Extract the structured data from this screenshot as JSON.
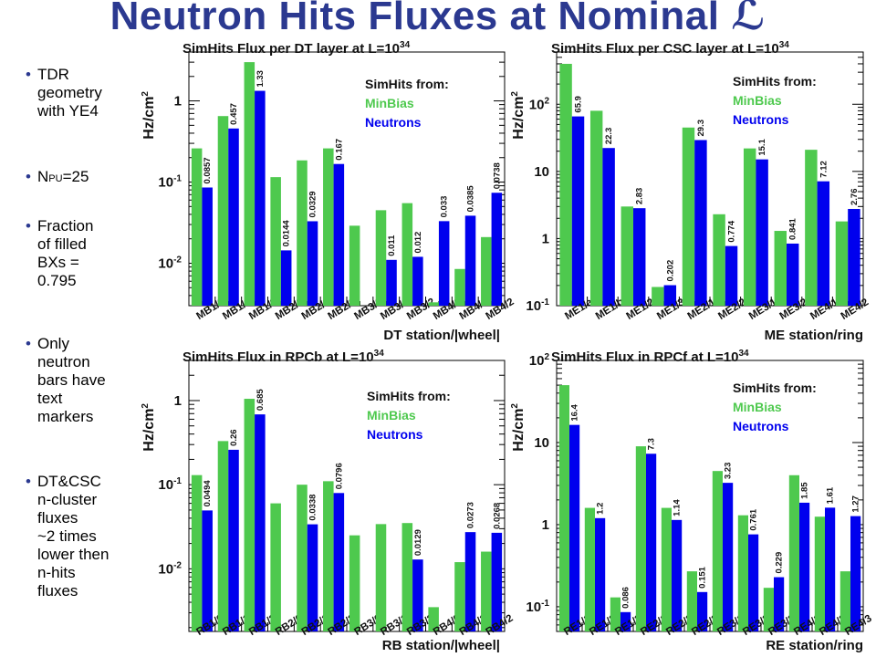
{
  "slide": {
    "title": "Neutron Hits Fluxes at Nominal ℒ",
    "bullets": [
      {
        "text": "TDR\ngeometry\nwith YE4"
      },
      {
        "text": "N",
        "sub": "PU",
        "after": "=25"
      },
      {
        "text": "Fraction\nof filled\nBXs =\n0.795"
      },
      {
        "text": "Only\nneutron\nbars have\ntext\nmarkers"
      },
      {
        "text": "DT&CSC\nn-cluster\nfluxes\n~2 times\nlower then\nn-hits\nfluxes"
      }
    ]
  },
  "colors": {
    "minbias": "#4ec94e",
    "neutrons": "#0000ee",
    "title": "#2b3990"
  },
  "chart_data": [
    {
      "type": "bar",
      "scale": "log",
      "title": "SimHits Flux per DT layer at L=10",
      "title_sup": "34",
      "ylabel": "Hz/cm",
      "ylabel_sup": "2",
      "xlabel": "DT station/|wheel|",
      "ylim": [
        0.003,
        4
      ],
      "yticks": [
        {
          "v": 1,
          "t": "1"
        },
        {
          "v": 0.1,
          "t": "10",
          "sup": "-1"
        },
        {
          "v": 0.01,
          "t": "10",
          "sup": "-2"
        }
      ],
      "legend": {
        "title": "SimHits from:",
        "items": [
          "MinBias",
          "Neutrons"
        ],
        "position": "top-right"
      },
      "categories": [
        "MB1/0",
        "MB1/1",
        "MB1/2",
        "MB2/0",
        "MB2/1",
        "MB2/2",
        "MB3/0",
        "MB3/1",
        "MB3/2",
        "MB4/0",
        "MB4/1",
        "MB4/2"
      ],
      "series": [
        {
          "name": "MinBias",
          "values": [
            0.26,
            0.65,
            3.0,
            0.115,
            0.185,
            0.26,
            0.029,
            0.045,
            0.055,
            0.0033,
            0.0085,
            0.021
          ]
        },
        {
          "name": "Neutrons",
          "values": [
            0.0857,
            0.457,
            1.33,
            0.0144,
            0.0329,
            0.167,
            null,
            0.011,
            0.012,
            0.033,
            0.0385,
            0.0738
          ]
        }
      ],
      "labels": [
        "0.0857",
        "0.457",
        "1.33",
        "0.0144",
        "0.0329",
        "0.167",
        "",
        "0.011",
        "0.012",
        "0.033",
        "0.0385",
        "0.0738"
      ]
    },
    {
      "type": "bar",
      "scale": "log",
      "title": "SimHits Flux per CSC layer at L=10",
      "title_sup": "34",
      "ylabel": "Hz/cm",
      "ylabel_sup": "2",
      "xlabel": "ME station/ring",
      "ylim": [
        0.1,
        600
      ],
      "yticks": [
        {
          "v": 100,
          "t": "10",
          "sup": "2"
        },
        {
          "v": 10,
          "t": "10"
        },
        {
          "v": 1,
          "t": "1"
        },
        {
          "v": 0.1,
          "t": "10",
          "sup": "-1"
        }
      ],
      "legend": {
        "title": "SimHits from:",
        "items": [
          "MinBias",
          "Neutrons"
        ],
        "position": "top-right"
      },
      "categories": [
        "ME1/a",
        "ME1/b",
        "ME1/2",
        "ME1/3",
        "ME2/1",
        "ME2/2",
        "ME3/1",
        "ME3/2",
        "ME4/1",
        "ME4/2"
      ],
      "series": [
        {
          "name": "MinBias",
          "values": [
            400,
            80,
            3.0,
            0.19,
            45,
            2.3,
            22,
            1.3,
            21,
            1.8
          ]
        },
        {
          "name": "Neutrons",
          "values": [
            65.9,
            22.3,
            2.83,
            0.202,
            29.3,
            0.774,
            15.1,
            0.841,
            7.12,
            2.76
          ]
        }
      ],
      "labels": [
        "65.9",
        "22.3",
        "2.83",
        "0.202",
        "29.3",
        "0.774",
        "15.1",
        "0.841",
        "7.12",
        "2.76"
      ]
    },
    {
      "type": "bar",
      "scale": "log",
      "title": "SimHits Flux in RPCb at L=10",
      "title_sup": "34",
      "ylabel": "Hz/cm",
      "ylabel_sup": "2",
      "xlabel": "RB station/|wheel|",
      "ylim": [
        0.0018,
        3
      ],
      "yticks": [
        {
          "v": 1,
          "t": "1"
        },
        {
          "v": 0.1,
          "t": "10",
          "sup": "-1"
        },
        {
          "v": 0.01,
          "t": "10",
          "sup": "-2"
        }
      ],
      "legend": {
        "title": "SimHits from:",
        "items": [
          "MinBias",
          "Neutrons"
        ],
        "position": "top-right"
      },
      "categories": [
        "RB1/0",
        "RB1/1",
        "RB1/2",
        "RB2/0",
        "RB2/1",
        "RB2/2",
        "RB3/0",
        "RB3/1",
        "RB3/2",
        "RB4/0",
        "RB4/1",
        "RB4/2"
      ],
      "series": [
        {
          "name": "MinBias",
          "values": [
            0.13,
            0.33,
            1.05,
            0.06,
            0.1,
            0.11,
            0.025,
            0.034,
            0.035,
            0.0035,
            0.012,
            0.016
          ]
        },
        {
          "name": "Neutrons",
          "values": [
            0.0494,
            0.26,
            0.685,
            null,
            0.0338,
            0.0796,
            null,
            null,
            0.0129,
            null,
            0.0273,
            0.0268
          ]
        }
      ],
      "labels": [
        "0.0494",
        "0.26",
        "0.685",
        "",
        "0.0338",
        "0.0796",
        "",
        "",
        "0.0129",
        "",
        "0.0273",
        "0.0268"
      ]
    },
    {
      "type": "bar",
      "scale": "log",
      "title": "SimHits Flux in RPCf at L=10",
      "title_sup": "34",
      "ylabel": "Hz/cm",
      "ylabel_sup": "2",
      "xlabel": "RE station/ring",
      "ylim": [
        0.05,
        100
      ],
      "yticks": [
        {
          "v": 100,
          "t": "10",
          "sup": "2"
        },
        {
          "v": 10,
          "t": "10"
        },
        {
          "v": 1,
          "t": "1"
        },
        {
          "v": 0.1,
          "t": "10",
          "sup": "-1"
        }
      ],
      "legend": {
        "title": "SimHits from:",
        "items": [
          "MinBias",
          "Neutrons"
        ],
        "position": "top-right"
      },
      "categories": [
        "RE1/1",
        "RE1/2",
        "RE1/3",
        "RE2/1",
        "RE2/2",
        "RE2/3",
        "RE3/1",
        "RE3/2",
        "RE3/3",
        "RE4/1",
        "RE4/2",
        "RE4/3"
      ],
      "series": [
        {
          "name": "MinBias",
          "values": [
            50,
            1.6,
            0.13,
            9.0,
            1.6,
            0.27,
            4.5,
            1.3,
            0.17,
            4.0,
            1.25,
            0.27
          ]
        },
        {
          "name": "Neutrons",
          "values": [
            16.4,
            1.2,
            0.086,
            7.3,
            1.14,
            0.151,
            3.23,
            0.761,
            0.229,
            1.85,
            1.61,
            1.27
          ]
        }
      ],
      "labels": [
        "16.4",
        "1.2",
        "0.086",
        "7.3",
        "1.14",
        "0.151",
        "3.23",
        "0.761",
        "0.229",
        "1.85",
        "1.61",
        "1.27"
      ]
    }
  ]
}
